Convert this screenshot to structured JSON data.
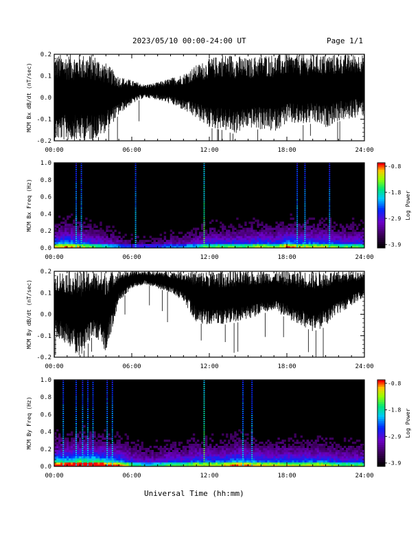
{
  "header": {
    "title": "2023/05/10  00:00-24:00 UT",
    "page_label": "Page 1/1"
  },
  "x_axis_label": "Universal Time (hh:mm)",
  "chart_data": [
    {
      "type": "line",
      "ylabel": "MCM Bx dB/dt (nT/sec)",
      "xlim": [
        0,
        24
      ],
      "x_ticks": [
        "00:00",
        "06:00",
        "12:00",
        "18:00",
        "24:00"
      ],
      "ylim": [
        -0.2,
        0.2
      ],
      "y_ticks": [
        "-0.2",
        "-0.1",
        "0.0",
        "0.1",
        "0.2"
      ],
      "envelope": {
        "x": [
          0,
          1,
          2,
          3,
          4,
          5,
          6,
          7,
          8,
          9,
          10,
          11,
          12,
          13,
          14,
          15,
          16,
          17,
          18,
          19,
          20,
          21,
          22,
          23,
          24
        ],
        "upper": [
          0.2,
          0.2,
          0.2,
          0.2,
          0.16,
          0.1,
          0.08,
          0.06,
          0.07,
          0.09,
          0.11,
          0.15,
          0.18,
          0.2,
          0.2,
          0.18,
          0.2,
          0.2,
          0.2,
          0.2,
          0.2,
          0.2,
          0.2,
          0.2,
          0.2
        ],
        "lower": [
          -0.2,
          -0.2,
          -0.2,
          -0.2,
          -0.16,
          -0.08,
          -0.03,
          0.0,
          -0.01,
          -0.03,
          -0.06,
          -0.1,
          -0.14,
          -0.15,
          -0.17,
          -0.14,
          -0.15,
          -0.16,
          -0.12,
          -0.13,
          -0.12,
          -0.14,
          -0.11,
          -0.1,
          -0.08
        ]
      }
    },
    {
      "type": "heatmap",
      "ylabel": "MCM Bx Freq (Hz)",
      "xlim": [
        0,
        24
      ],
      "x_ticks": [
        "00:00",
        "06:00",
        "12:00",
        "18:00",
        "24:00"
      ],
      "ylim": [
        0,
        1
      ],
      "y_ticks": [
        "0.0",
        "0.2",
        "0.4",
        "0.6",
        "0.8",
        "1.0"
      ],
      "colorbar": {
        "label": "Log Power",
        "min": -3.9,
        "max": -0.8,
        "ticks": [
          "-0.8",
          "-1.8",
          "-2.9",
          "-3.9"
        ]
      },
      "spikes_hours": [
        1.7,
        2.1,
        6.3,
        11.6,
        18.8,
        19.4,
        21.3
      ],
      "activity": [
        0.6,
        0.7,
        0.6,
        0.5,
        0.4,
        0.3,
        0.2,
        0.2,
        0.2,
        0.3,
        0.3,
        0.4,
        0.5,
        0.5,
        0.5,
        0.5,
        0.6,
        0.5,
        0.7,
        0.6,
        0.6,
        0.6,
        0.5,
        0.5,
        0.5
      ]
    },
    {
      "type": "line",
      "ylabel": "MCM By dB/dt (nT/sec)",
      "xlim": [
        0,
        24
      ],
      "x_ticks": [
        "00:00",
        "06:00",
        "12:00",
        "18:00",
        "24:00"
      ],
      "ylim": [
        -0.2,
        0.2
      ],
      "y_ticks": [
        "-0.2",
        "-0.1",
        "0.0",
        "0.1",
        "0.2"
      ],
      "envelope": {
        "x": [
          0,
          1,
          2,
          3,
          4,
          5,
          6,
          7,
          8,
          9,
          10,
          11,
          12,
          13,
          14,
          15,
          16,
          17,
          18,
          19,
          20,
          21,
          22,
          23,
          24
        ],
        "upper": [
          0.2,
          0.2,
          0.2,
          0.2,
          0.2,
          0.2,
          0.2,
          0.2,
          0.2,
          0.2,
          0.2,
          0.2,
          0.2,
          0.2,
          0.2,
          0.2,
          0.2,
          0.2,
          0.2,
          0.2,
          0.2,
          0.2,
          0.2,
          0.2,
          0.2
        ],
        "lower": [
          -0.1,
          -0.15,
          -0.2,
          -0.1,
          -0.18,
          0.06,
          0.12,
          0.14,
          0.12,
          0.1,
          0.06,
          -0.04,
          -0.05,
          -0.05,
          -0.04,
          -0.03,
          0.0,
          0.02,
          -0.02,
          -0.05,
          -0.08,
          -0.06,
          0.0,
          0.04,
          0.08
        ]
      }
    },
    {
      "type": "heatmap",
      "ylabel": "MCM By Freq (Hz)",
      "xlim": [
        0,
        24
      ],
      "x_ticks": [
        "00:00",
        "06:00",
        "12:00",
        "18:00",
        "24:00"
      ],
      "ylim": [
        0,
        1
      ],
      "y_ticks": [
        "0.0",
        "0.2",
        "0.4",
        "0.6",
        "0.8",
        "1.0"
      ],
      "colorbar": {
        "label": "Log Power",
        "min": -3.9,
        "max": -0.8,
        "ticks": [
          "-0.8",
          "-1.8",
          "-2.9",
          "-3.9"
        ]
      },
      "spikes_hours": [
        0.7,
        1.7,
        2.2,
        2.6,
        3.0,
        4.1,
        4.5,
        11.6,
        14.6,
        15.3
      ],
      "activity": [
        0.8,
        0.8,
        0.9,
        0.9,
        0.8,
        0.7,
        0.5,
        0.4,
        0.4,
        0.5,
        0.5,
        0.6,
        0.6,
        0.6,
        0.7,
        0.7,
        0.6,
        0.6,
        0.6,
        0.6,
        0.6,
        0.6,
        0.5,
        0.5,
        0.5
      ]
    }
  ]
}
